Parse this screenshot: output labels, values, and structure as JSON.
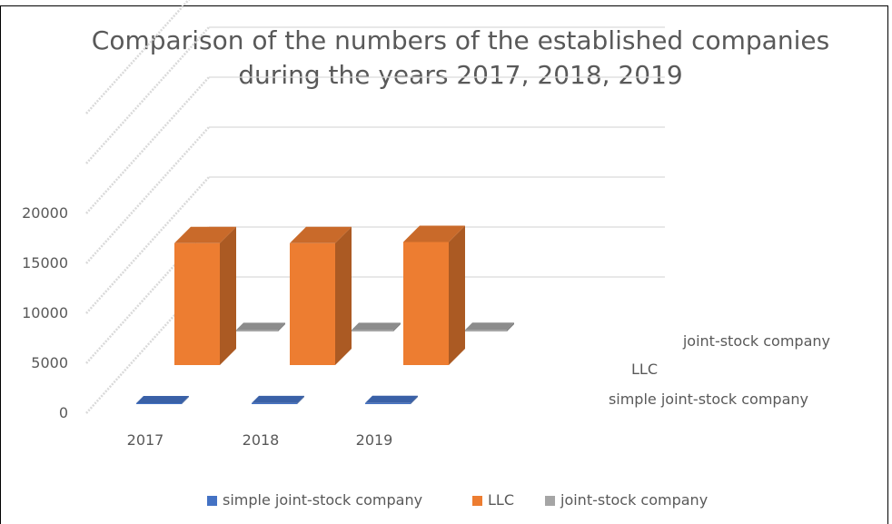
{
  "chart_data": {
    "type": "bar",
    "title_lines": [
      "Comparison of the numbers of the established companies",
      "during the years 2017, 2018, 2019"
    ],
    "categories": [
      "2017",
      "2018",
      "2019"
    ],
    "series": [
      {
        "name": "simple joint-stock company",
        "values": [
          150,
          160,
          180
        ]
      },
      {
        "name": "LLC",
        "values": [
          20000,
          20000,
          20200
        ]
      },
      {
        "name": "joint-stock company",
        "values": [
          250,
          240,
          270
        ]
      }
    ],
    "yticks": [
      "0",
      "5000",
      "10000",
      "15000",
      "20000"
    ],
    "ylim": [
      0,
      30000
    ],
    "depth_axis_labels": [
      "simple joint-stock company",
      "LLC",
      "joint-stock company"
    ],
    "legend_position": "bottom",
    "colors": {
      "simple joint-stock company": "#4472c4",
      "LLC": "#ed7d31",
      "joint-stock company": "#a5a5a5",
      "gridline": "#d9d9d9",
      "text": "#595959",
      "title": "#595959",
      "border": "#000000"
    }
  }
}
